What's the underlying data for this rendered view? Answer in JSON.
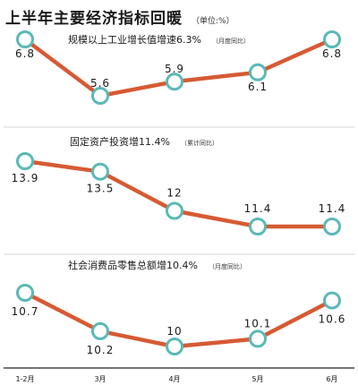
{
  "header": {
    "title": "上半年主要经济指标回暖",
    "unit": "（单位:%）"
  },
  "colors": {
    "line": "#d65a33",
    "marker_edge": "#5ab9b6",
    "marker_fill": "#ffffff",
    "separator": "#aaaaaa",
    "axis": "#222222"
  },
  "chart_data": [
    {
      "type": "line",
      "title": "规模以上工业增长值增速6.3%",
      "note": "（月度同比）",
      "categories": [
        "1-2月",
        "3月",
        "4月",
        "5月",
        "6月"
      ],
      "series": [
        {
          "values": [
            6.8,
            5.6,
            5.9,
            6.1,
            6.8
          ],
          "labels": [
            "6.8",
            "5.6",
            "5.9",
            "6.1",
            "6.8"
          ]
        }
      ]
    },
    {
      "type": "line",
      "title": "固定资产投资增11.4%",
      "note": "（累计同比）",
      "categories": [
        "1-2月",
        "3月",
        "4月",
        "5月",
        "6月"
      ],
      "series": [
        {
          "values": [
            13.9,
            13.5,
            12,
            11.4,
            11.4
          ],
          "labels": [
            "13.9",
            "13.5",
            "12",
            "11.4",
            "11.4"
          ]
        }
      ]
    },
    {
      "type": "line",
      "title": "社会消费品零售总额增10.4%",
      "note": "（月度同比）",
      "categories": [
        "1-2月",
        "3月",
        "4月",
        "5月",
        "6月"
      ],
      "series": [
        {
          "values": [
            10.7,
            10.2,
            10,
            10.1,
            10.6
          ],
          "labels": [
            "10.7",
            "10.2",
            "10",
            "10.1",
            "10.6"
          ]
        }
      ]
    }
  ]
}
